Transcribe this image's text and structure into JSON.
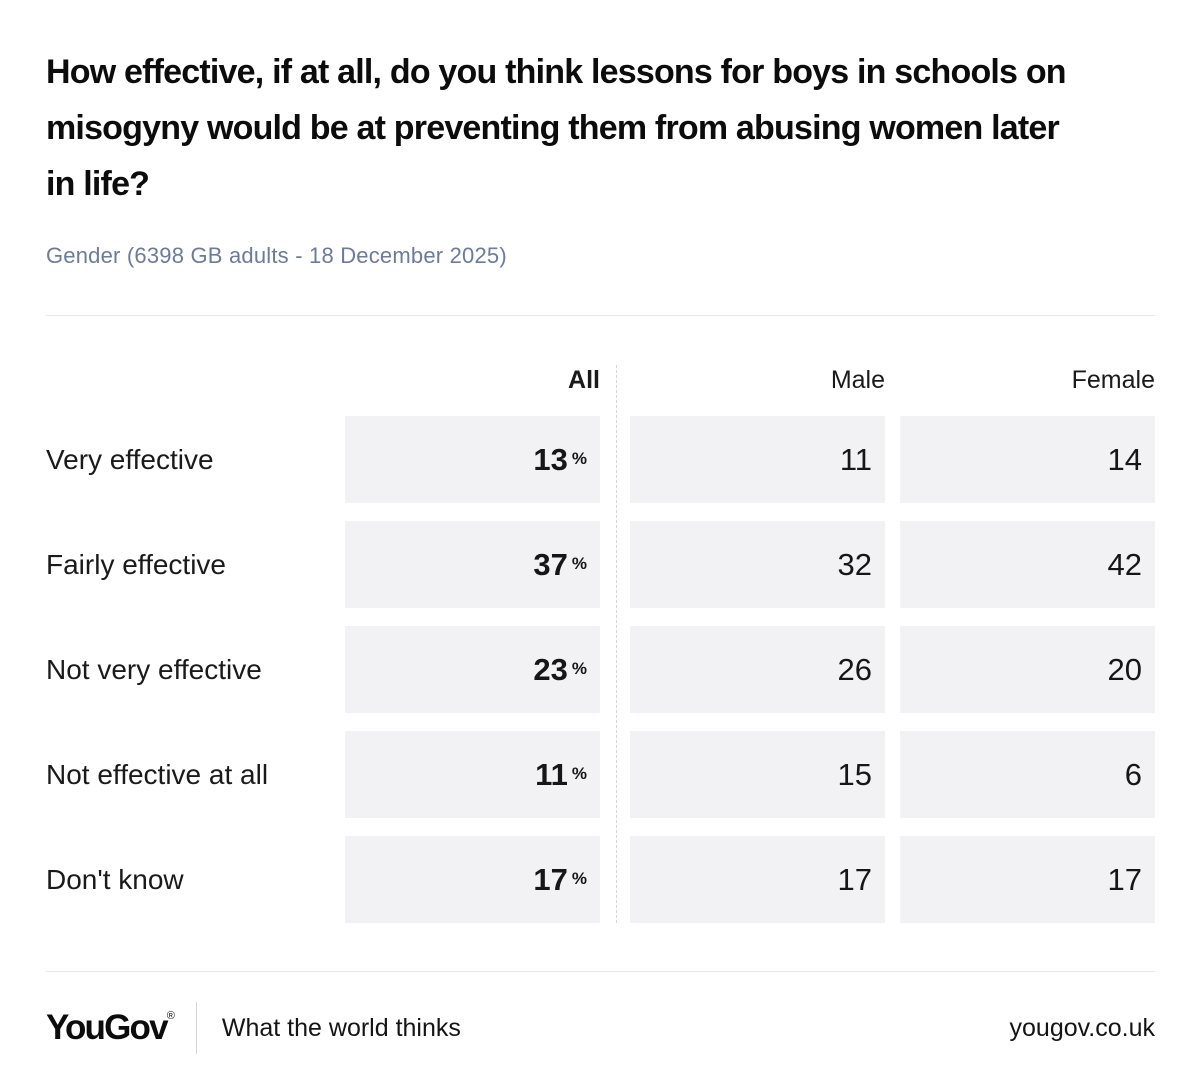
{
  "chart_data": {
    "type": "table",
    "title": "How effective, if at all, do you think lessons for boys in schools on misogyny would be at preventing them from abusing women later in life?",
    "subtitle": "Gender (6398 GB adults - 18 December 2025)",
    "columns": [
      "All",
      "Male",
      "Female"
    ],
    "unit": "%",
    "unit_note": "percent sign shown only in All column",
    "rows": [
      {
        "label": "Very effective",
        "all": 13,
        "male": 11,
        "female": 14
      },
      {
        "label": "Fairly effective",
        "all": 37,
        "male": 32,
        "female": 42
      },
      {
        "label": "Not very effective",
        "all": 23,
        "male": 26,
        "female": 20
      },
      {
        "label": "Not effective at all",
        "all": 11,
        "male": 15,
        "female": 6
      },
      {
        "label": "Don't know",
        "all": 17,
        "male": 17,
        "female": 17
      }
    ],
    "layout_hints": {
      "value_alignment": "right",
      "all_column_bold": true,
      "dashed_separator_between_all_and_gender_columns": true,
      "cell_background": "#f2f2f4"
    }
  },
  "colors": {
    "title_text": "#0c0c0c",
    "subtitle_text": "#6b7b9c",
    "body_text": "#1a1a1a",
    "cell_background": "#f2f2f4",
    "divider": "#e7e7e9"
  },
  "footer": {
    "logo_text": "YouGov",
    "registered_mark": "®",
    "tagline": "What the world thinks",
    "website": "yougov.co.uk"
  }
}
